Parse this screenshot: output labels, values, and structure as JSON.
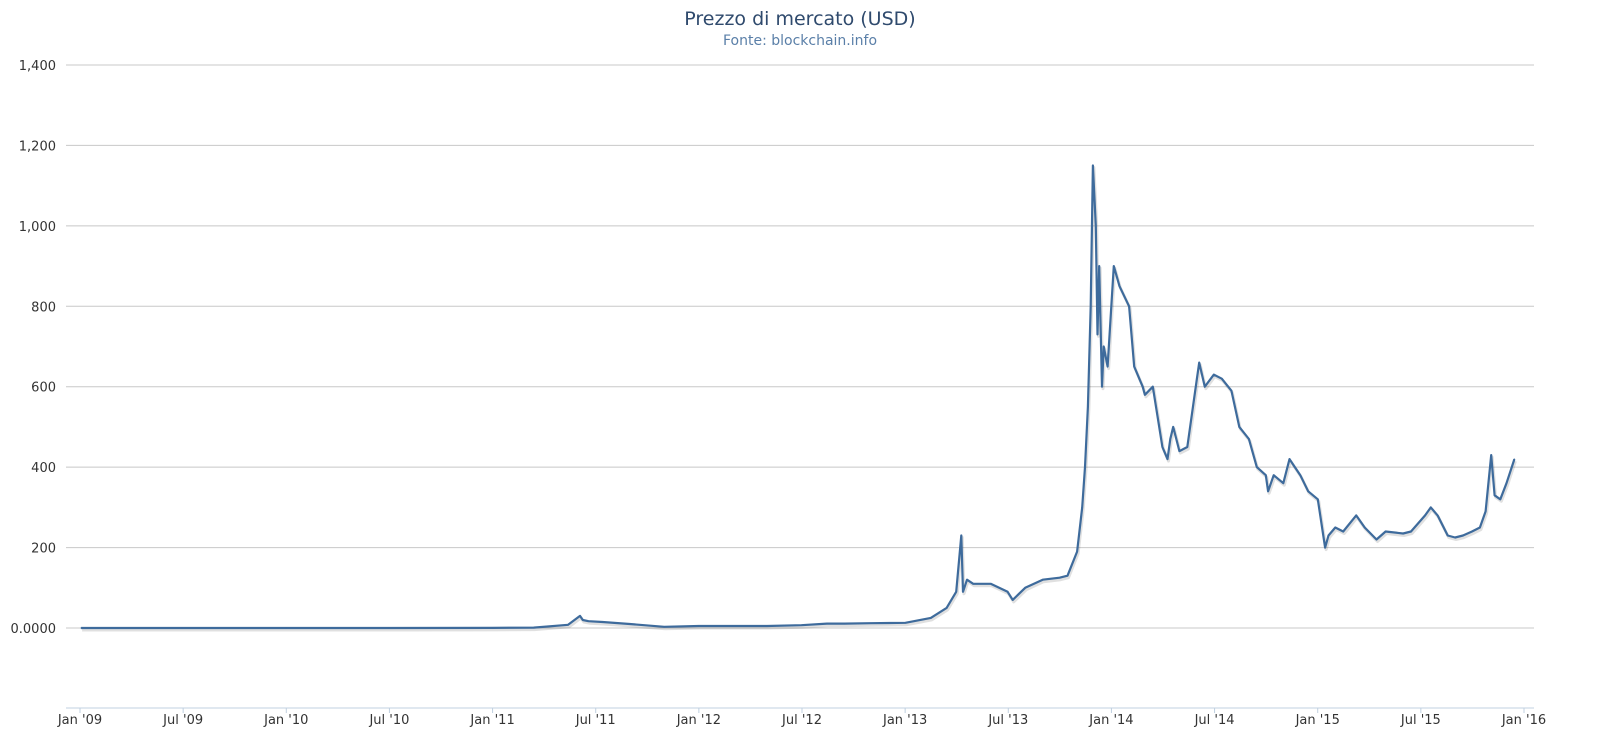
{
  "chart_data": {
    "type": "line",
    "title": "Prezzo di mercato (USD)",
    "subtitle": "Fonte: blockchain.info",
    "xlabel": "",
    "ylabel": "",
    "xlim": [
      "2009-01-01",
      "2016-01-01"
    ],
    "ylim": [
      -200,
      1400
    ],
    "grid": true,
    "legend": "none",
    "line_color": "#3e6b9c",
    "x_tick_labels": [
      "Jan '09",
      "Jul '09",
      "Jan '10",
      "Jul '10",
      "Jan '11",
      "Jul '11",
      "Jan '12",
      "Jul '12",
      "Jan '13",
      "Jul '13",
      "Jan '14",
      "Jul '14",
      "Jan '15",
      "Jul '15",
      "Jan '16"
    ],
    "y_tick_labels": [
      "0.0000",
      "200",
      "400",
      "600",
      "800",
      "1,000",
      "1,200",
      "1,400"
    ],
    "series": [
      {
        "x": [
          "2009-01-03",
          "2009-07-01",
          "2010-01-01",
          "2010-07-01",
          "2011-01-01",
          "2011-03-15",
          "2011-05-15",
          "2011-06-05",
          "2011-06-10",
          "2011-06-20",
          "2011-07-15",
          "2011-09-01",
          "2011-11-01",
          "2012-01-01",
          "2012-03-01",
          "2012-05-01",
          "2012-07-01",
          "2012-08-15",
          "2012-09-15",
          "2012-11-01",
          "2013-01-01",
          "2013-02-15",
          "2013-03-15",
          "2013-04-01",
          "2013-04-10",
          "2013-04-13",
          "2013-04-20",
          "2013-05-01",
          "2013-06-01",
          "2013-07-01",
          "2013-07-10",
          "2013-08-01",
          "2013-09-01",
          "2013-10-01",
          "2013-10-15",
          "2013-11-01",
          "2013-11-10",
          "2013-11-15",
          "2013-11-20",
          "2013-11-25",
          "2013-11-29",
          "2013-12-04",
          "2013-12-07",
          "2013-12-10",
          "2013-12-15",
          "2013-12-18",
          "2013-12-25",
          "2014-01-05",
          "2014-01-15",
          "2014-02-01",
          "2014-02-10",
          "2014-02-25",
          "2014-03-01",
          "2014-03-15",
          "2014-04-01",
          "2014-04-10",
          "2014-04-15",
          "2014-04-20",
          "2014-05-01",
          "2014-05-15",
          "2014-06-01",
          "2014-06-05",
          "2014-06-15",
          "2014-07-01",
          "2014-07-15",
          "2014-08-01",
          "2014-08-15",
          "2014-09-01",
          "2014-09-15",
          "2014-10-01",
          "2014-10-05",
          "2014-10-15",
          "2014-11-01",
          "2014-11-12",
          "2014-12-01",
          "2014-12-15",
          "2015-01-01",
          "2015-01-14",
          "2015-01-20",
          "2015-02-01",
          "2015-02-15",
          "2015-03-10",
          "2015-03-25",
          "2015-04-15",
          "2015-05-01",
          "2015-06-01",
          "2015-06-15",
          "2015-07-10",
          "2015-07-20",
          "2015-08-01",
          "2015-08-19",
          "2015-09-01",
          "2015-09-15",
          "2015-10-01",
          "2015-10-15",
          "2015-10-25",
          "2015-11-04",
          "2015-11-10",
          "2015-11-20",
          "2015-12-01",
          "2015-12-15"
        ],
        "y": [
          0,
          0,
          0,
          0,
          0.3,
          1,
          8,
          30,
          20,
          17,
          15,
          10,
          3,
          5,
          5,
          5,
          7,
          11,
          11,
          12,
          13,
          25,
          50,
          90,
          230,
          90,
          120,
          110,
          110,
          90,
          70,
          100,
          120,
          125,
          130,
          190,
          300,
          400,
          550,
          800,
          1150,
          1000,
          730,
          900,
          600,
          700,
          650,
          900,
          850,
          800,
          650,
          600,
          580,
          600,
          450,
          420,
          470,
          500,
          440,
          450,
          620,
          660,
          600,
          630,
          620,
          590,
          500,
          470,
          400,
          380,
          340,
          380,
          360,
          420,
          380,
          340,
          320,
          200,
          230,
          250,
          240,
          280,
          250,
          220,
          240,
          235,
          240,
          280,
          300,
          280,
          230,
          225,
          230,
          240,
          250,
          290,
          430,
          330,
          320,
          360,
          420
        ]
      }
    ]
  }
}
